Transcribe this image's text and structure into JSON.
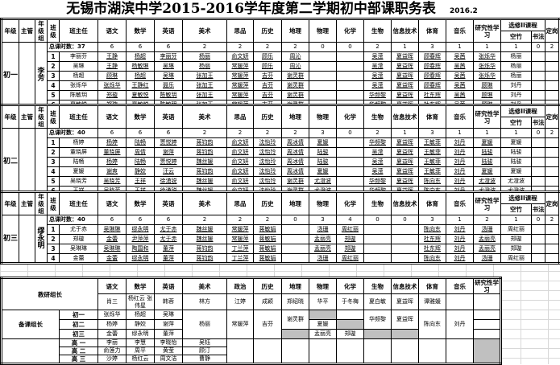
{
  "title": "无锡市湖滨中学2015-2016学年度第二学期初中部课职务表",
  "date": "2016.2",
  "headers": {
    "grade": "年级",
    "supervisor": "主管",
    "group": "年级组",
    "class": "班级",
    "head_teacher": "班主任",
    "subjects": [
      "语文",
      "数学",
      "英语",
      "美术",
      "思品",
      "历史",
      "地理",
      "物理",
      "化学",
      "生物",
      "信息技术",
      "体育",
      "音乐",
      "研究性学习"
    ],
    "elective": "选修II课程",
    "elective_sub": [
      "空竹",
      "书法"
    ],
    "post": "定岗"
  },
  "blocks": [
    {
      "grade": "初一",
      "supervisor": "",
      "group": "李芳",
      "total_label": "总课时数：37",
      "counts": [
        "6",
        "6",
        "6",
        "2",
        "2",
        "2",
        "2",
        "0",
        "0",
        "2",
        "1",
        "3",
        "1",
        "1",
        "1",
        "0",
        "2"
      ],
      "rows": [
        [
          "1",
          "李丽芬",
          "王静",
          "杨超",
          "李丽芬",
          "杨丽",
          "俞文妍",
          "顾乐",
          "周沁",
          "",
          "",
          "吴滢",
          "夏益晖",
          "顾春辉",
          "吴茜",
          "张烁华",
          "杨丽"
        ],
        [
          "2",
          "吴琳",
          "王静",
          "杨敏琳",
          "吴琳",
          "杨丽",
          "常媛萍",
          "顾乐",
          "周沁",
          "",
          "",
          "吴滢",
          "夏益晖",
          "顾春辉",
          "吴茜",
          "张烁华",
          "杨丽"
        ],
        [
          "3",
          "杨超",
          "顾琳",
          "杨超",
          "吴琳",
          "张加王",
          "常媛萍",
          "吉芬",
          "谢灵群",
          "",
          "",
          "吴滢",
          "夏益晖",
          "顾春辉",
          "吴茜",
          "张烁华",
          "杨丽"
        ],
        [
          "4",
          "张烁华",
          "张烁华",
          "王静红",
          "聂乐",
          "张加王",
          "常媛萍",
          "吉芬",
          "谢灵群",
          "",
          "",
          "吴滢",
          "夏益晖",
          "顾春辉",
          "吴茜",
          "顾琳",
          "刘丹"
        ],
        [
          "5",
          "陈敏玥",
          "郑璇",
          "夏敏悦",
          "陈敏玥",
          "张加王",
          "常媛萍",
          "吉芬",
          "谢灵群",
          "",
          "",
          "华频黎",
          "夏益晖",
          "杜东辉",
          "吴茜",
          "顾琳",
          "刘丹"
        ],
        [
          "6",
          "夏敏悦",
          "郑璇",
          "夏敏悦",
          "陈敏玥",
          "张加王",
          "常媛萍",
          "吉芬",
          "谢灵群",
          "",
          "",
          "华频黎",
          "夏益晖",
          "杜东辉",
          "吴茜",
          "顾琳",
          "刘丹"
        ]
      ]
    },
    {
      "grade": "初二",
      "supervisor": "",
      "group": "",
      "total_label": "总课时数：40",
      "counts": [
        "6",
        "6",
        "6",
        "2",
        "2",
        "2",
        "2",
        "3",
        "0",
        "2",
        "1",
        "3",
        "1",
        "1",
        "1",
        "0",
        "2"
      ],
      "rows": [
        [
          "1",
          "杨婷",
          "杨婷",
          "陆畅",
          "贾悦婷",
          "蒋钧韵",
          "俞文妍",
          "沈怡玲",
          "周冰倩",
          "夏媛",
          "",
          "华频黎",
          "夏益晖",
          "王敏菲",
          "刘丹",
          "夏媛",
          "夏媛"
        ],
        [
          "2",
          "董晓屏",
          "董晓屏",
          "周倩",
          "谢萍",
          "蒋钧韵",
          "俞文妍",
          "沈怡玲",
          "周冰倩",
          "陆骏",
          "",
          "吴滢",
          "夏益晖",
          "王敏菲",
          "刘丹",
          "陆骏",
          "陆骏"
        ],
        [
          "3",
          "陆畅",
          "杨婷",
          "陆畅",
          "贾悦婷",
          "魏丝媛",
          "俞文妍",
          "沈怡玲",
          "周冰倩",
          "陆骏",
          "",
          "吴滢",
          "夏益晖",
          "王敏菲",
          "刘丹",
          "陆骏",
          "陆骏"
        ],
        [
          "4",
          "夏媛",
          "谢爽",
          "静姣",
          "汪云",
          "蒋钧韵",
          "俞文妍",
          "沈怡玲",
          "周冰倩",
          "夏媛",
          "",
          "吴滢",
          "夏益晖",
          "王敏菲",
          "刘丹",
          "夏媛",
          "夏媛"
        ],
        [
          "5",
          "吴晓芳",
          "吴晓芳",
          "王祥",
          "徐湧锐",
          "魏丝媛",
          "俞文妍",
          "沈怡玲",
          "谢灵群",
          "尤澄波",
          "",
          "华频黎",
          "夏益晖",
          "陈向东",
          "刘丹",
          "尤澄波",
          "尤澄波"
        ],
        [
          "6",
          "王祥",
          "吴晓芳",
          "王祥",
          "徐湧锐",
          "魏丝媛",
          "俞文妍",
          "沈怡玲",
          "谢灵群",
          "尤澄波",
          "",
          "华频黎",
          "夏益晖",
          "陈向东",
          "刘丹",
          "尤澄波",
          "尤澄波"
        ]
      ]
    },
    {
      "grade": "初三",
      "supervisor": "",
      "group": "缪永明",
      "total_label": "总课时数：40",
      "counts": [
        "6",
        "6",
        "6",
        "2",
        "2",
        "2",
        "0",
        "3",
        "4",
        "0",
        "0",
        "3",
        "1",
        "2",
        "1",
        "0",
        "2"
      ],
      "rows": [
        [
          "1",
          "尤于赤",
          "吴琳琳",
          "缪永明",
          "尤于赤",
          "魏丝媛",
          "常媛萍",
          "蒋敏娟",
          "",
          "汤珊",
          "周红丽",
          "",
          "",
          "陈向东",
          "刘丹",
          "汤珊",
          "周红丽"
        ],
        [
          "2",
          "郑璇",
          "金蕾",
          "尹萍萍",
          "尤于赤",
          "魏丝媛",
          "常媛萍",
          "蒋敏娟",
          "",
          "孟丽亮",
          "郑璇",
          "",
          "",
          "杜东辉",
          "刘丹",
          "孟丽亮",
          "郑璇"
        ],
        [
          "3",
          "吴琳琳",
          "吴琳琳",
          "陶国和",
          "董萍",
          "蒋钧韵",
          "丁兰萍",
          "蒋敏娟",
          "",
          "孟丽亮",
          "郑璇",
          "",
          "",
          "杜东辉",
          "刘丹",
          "孟丽亮",
          "郑璇"
        ],
        [
          "4",
          "金蕾",
          "金蕾",
          "缪永明",
          "董萍",
          "蒋钧韵",
          "丁兰萍",
          "蒋敏娟",
          "",
          "汤珊",
          "周红丽",
          "",
          "",
          "陈向东",
          "刘丹",
          "汤珊",
          "周红丽"
        ]
      ]
    }
  ],
  "leaders": {
    "research_label": "教研组长",
    "subjects": [
      "语文",
      "数学",
      "英语",
      "美术",
      "政治",
      "历史",
      "地理",
      "物理",
      "化学",
      "生物",
      "信息技术",
      "体育",
      "音乐",
      "研究性学习"
    ],
    "research": [
      "肖三",
      "杨红云 张伟星",
      "韩蓉",
      "林方",
      "江婷",
      "成颖",
      "郑绍晓",
      "华平",
      "于冬梅",
      "夏白敏",
      "夏益晖",
      "谭雅媛",
      "",
      ""
    ],
    "prep_label": "备课组长",
    "prep": [
      {
        "grade": "初一",
        "chinese": "张烁华",
        "math": "杨超",
        "english": "吴琳",
        "physics": "",
        "chemistry": ""
      },
      {
        "grade": "初二",
        "chinese": "杨婷",
        "math": "静姣",
        "english": "谢萍",
        "physics": "夏媛",
        "chemistry": ""
      },
      {
        "grade": "初三",
        "chinese": "金蕾",
        "math": "缪永明",
        "english": "董萍",
        "physics": "孟丽亮",
        "chemistry": "郑璇"
      }
    ],
    "prep_shared": {
      "art": "杨丽",
      "politics": "常媛萍",
      "history": "吉芬",
      "geography": "谢灵群",
      "biology": "华频黎",
      "it": "夏益晖",
      "pe": "陈向东",
      "music": "刘丹"
    },
    "senior": [
      {
        "grade": "高 一",
        "chinese": "李丽",
        "math": "李慧",
        "english": "李晓怡",
        "art": "吴钰"
      },
      {
        "grade": "高 二",
        "chinese": "俞莲力",
        "math": "周平",
        "english": "黄莹",
        "art": "顾汀"
      },
      {
        "grade": "高 三",
        "chinese": "沙婷",
        "math": "杨红云",
        "english": "周文洁",
        "art": "曹静"
      }
    ]
  }
}
